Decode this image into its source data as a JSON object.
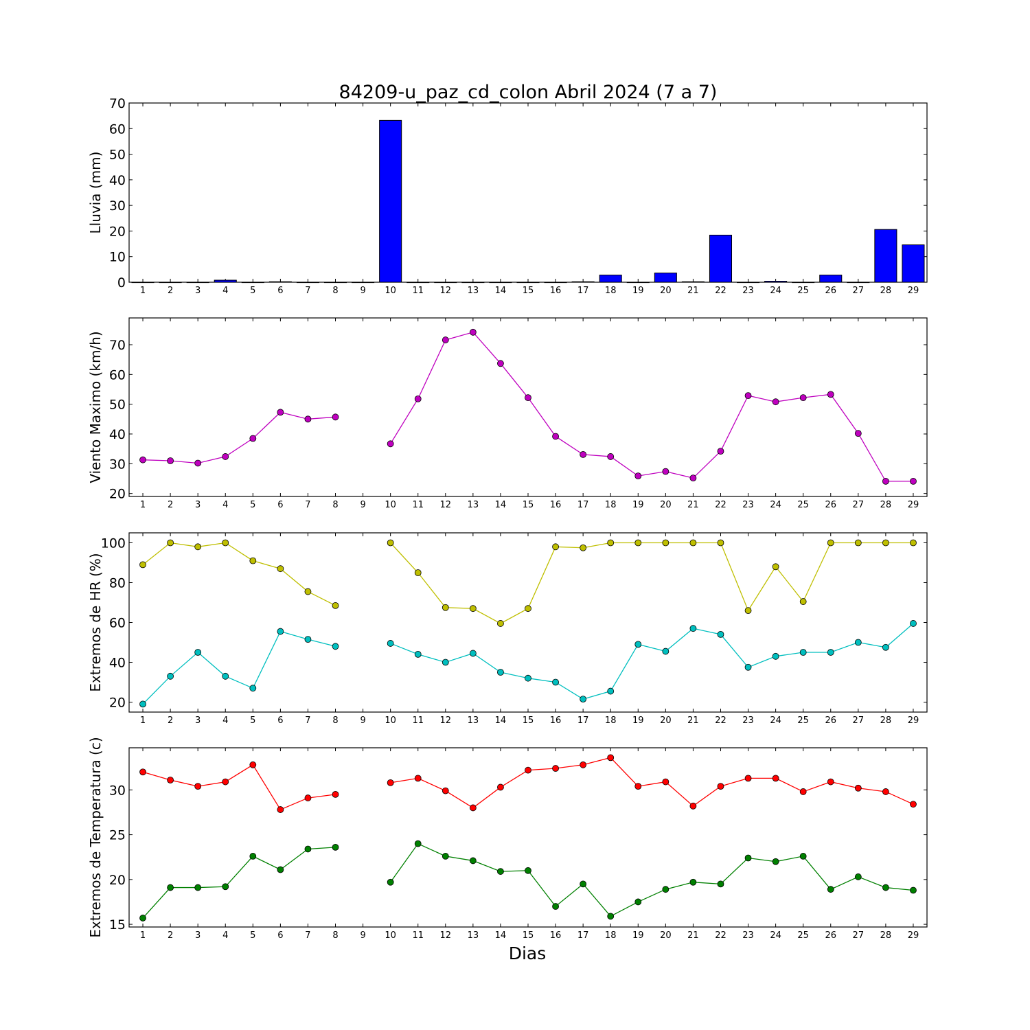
{
  "title": "84209-u_paz_cd_colon Abril 2024  (7 a 7)",
  "xlabel": "Dias",
  "chart_data": [
    {
      "type": "bar",
      "title": "84209-u_paz_cd_colon Abril 2024  (7 a 7)",
      "ylabel": "Lluvia (mm)",
      "xlabel": "",
      "ylim": [
        0,
        70
      ],
      "yticks": [
        0,
        10,
        20,
        30,
        40,
        50,
        60,
        70
      ],
      "categories": [
        1,
        2,
        3,
        4,
        5,
        6,
        7,
        8,
        9,
        10,
        11,
        12,
        13,
        14,
        15,
        16,
        17,
        18,
        19,
        20,
        21,
        22,
        23,
        24,
        25,
        26,
        27,
        28,
        29
      ],
      "values": [
        0,
        0,
        0,
        0.8,
        0,
        0.2,
        0,
        0,
        0,
        63.2,
        0,
        0,
        0,
        0,
        0,
        0,
        0.2,
        2.8,
        0,
        3.6,
        0.2,
        18.4,
        0,
        0.4,
        0,
        2.8,
        0,
        20.6,
        14.6
      ],
      "color": "#0000ff"
    },
    {
      "type": "line",
      "ylabel": "Viento Maximo (km/h)",
      "xlabel": "",
      "ylim": [
        19,
        79
      ],
      "yticks": [
        20,
        30,
        40,
        50,
        60,
        70
      ],
      "x": [
        1,
        2,
        3,
        4,
        5,
        6,
        7,
        8,
        9,
        10,
        11,
        12,
        13,
        14,
        15,
        16,
        17,
        18,
        19,
        20,
        21,
        22,
        23,
        24,
        25,
        26,
        27,
        28,
        29
      ],
      "series": [
        {
          "values": [
            31.3,
            31.0,
            30.2,
            32.4,
            38.5,
            47.3,
            45.0,
            45.7,
            null,
            36.7,
            51.8,
            71.6,
            74.2,
            63.7,
            52.2,
            39.2,
            33.1,
            32.4,
            25.9,
            27.4,
            25.2,
            34.2,
            52.9,
            50.8,
            52.2,
            53.3,
            40.2,
            24.1,
            24.1
          ],
          "color": "#bf00bf"
        }
      ]
    },
    {
      "type": "line",
      "ylabel": "Extremos de HR (%)",
      "xlabel": "",
      "ylim": [
        15,
        105
      ],
      "yticks": [
        20,
        40,
        60,
        80,
        100
      ],
      "x": [
        1,
        2,
        3,
        4,
        5,
        6,
        7,
        8,
        9,
        10,
        11,
        12,
        13,
        14,
        15,
        16,
        17,
        18,
        19,
        20,
        21,
        22,
        23,
        24,
        25,
        26,
        27,
        28,
        29
      ],
      "series": [
        {
          "values": [
            89,
            100,
            98,
            100,
            91,
            87,
            75.5,
            68.5,
            null,
            100,
            85,
            67.5,
            67,
            59.5,
            67,
            98,
            97.5,
            100,
            100,
            100,
            100,
            100,
            66,
            88,
            70.5,
            100,
            100,
            100,
            100
          ],
          "color": "#bfbf00"
        },
        {
          "values": [
            19,
            33,
            45,
            33,
            27,
            55.5,
            51.5,
            48,
            null,
            49.5,
            44,
            40,
            44.5,
            35,
            32,
            30,
            21.5,
            25.5,
            49,
            45.5,
            57,
            54,
            37.5,
            43,
            45,
            45,
            50,
            47.5,
            59.5
          ],
          "color": "#00bfbf"
        }
      ]
    },
    {
      "type": "line",
      "ylabel": "Extremos de Temperatura (c)",
      "xlabel": "Dias",
      "ylim": [
        14.7,
        34.7
      ],
      "yticks": [
        15,
        20,
        25,
        30
      ],
      "x": [
        1,
        2,
        3,
        4,
        5,
        6,
        7,
        8,
        9,
        10,
        11,
        12,
        13,
        14,
        15,
        16,
        17,
        18,
        19,
        20,
        21,
        22,
        23,
        24,
        25,
        26,
        27,
        28,
        29
      ],
      "series": [
        {
          "values": [
            32.0,
            31.1,
            30.4,
            30.9,
            32.8,
            27.8,
            29.1,
            29.5,
            null,
            30.8,
            31.3,
            29.9,
            28.0,
            30.3,
            32.2,
            32.4,
            32.8,
            33.6,
            30.4,
            30.9,
            28.2,
            30.4,
            31.3,
            31.3,
            29.8,
            30.9,
            30.2,
            29.8,
            28.4
          ],
          "color": "#ff0000"
        },
        {
          "values": [
            15.7,
            19.1,
            19.1,
            19.2,
            22.6,
            21.1,
            23.4,
            23.6,
            null,
            19.7,
            24.0,
            22.6,
            22.1,
            20.9,
            21.0,
            17.0,
            19.5,
            15.9,
            17.5,
            18.9,
            19.7,
            19.5,
            22.4,
            22.0,
            22.6,
            18.9,
            20.3,
            19.1,
            18.8
          ],
          "color": "#008000"
        }
      ]
    }
  ]
}
